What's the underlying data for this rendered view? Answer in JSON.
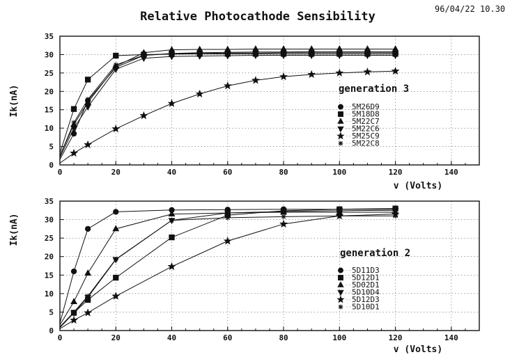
{
  "figure": {
    "title": "Relative Photocathode Sensibility",
    "stamp": "96/04/22  10.30"
  },
  "chart_data": [
    {
      "type": "line",
      "ylabel": "Ik(nA)",
      "xlabel": "v (Volts)",
      "annotation": "generation 3",
      "xlim": [
        0,
        150
      ],
      "ylim": [
        0,
        35
      ],
      "xticks": [
        0,
        20,
        40,
        60,
        80,
        100,
        120,
        140
      ],
      "yticks": [
        0,
        5,
        10,
        15,
        20,
        25,
        30,
        35
      ],
      "grid": true,
      "legend_position": "right",
      "series": [
        {
          "name": "5M26D9",
          "marker": "circle",
          "x": [
            0,
            5,
            10,
            20,
            30,
            40,
            50,
            60,
            70,
            80,
            90,
            100,
            110,
            120
          ],
          "y": [
            1.5,
            8.5,
            17.5,
            26.5,
            29.8,
            30.2,
            30.3,
            30.4,
            30.4,
            30.5,
            30.5,
            30.5,
            30.5,
            30.5
          ]
        },
        {
          "name": "5M18D8",
          "marker": "square",
          "x": [
            0,
            5,
            10,
            20,
            30,
            40,
            50,
            60,
            70,
            80,
            90,
            100,
            110,
            120
          ],
          "y": [
            3.2,
            15.2,
            23.2,
            29.7,
            30.0,
            30.1,
            30.2,
            30.2,
            30.2,
            30.2,
            30.2,
            30.2,
            30.2,
            30.2
          ]
        },
        {
          "name": "5M22C7",
          "marker": "triangle-up",
          "x": [
            0,
            5,
            10,
            20,
            30,
            40,
            50,
            60,
            70,
            80,
            90,
            100,
            110,
            120
          ],
          "y": [
            2.5,
            11.0,
            17.0,
            26.8,
            30.5,
            31.3,
            31.4,
            31.4,
            31.5,
            31.5,
            31.5,
            31.5,
            31.5,
            31.5
          ]
        },
        {
          "name": "5M22C6",
          "marker": "triangle-down",
          "x": [
            0,
            5,
            10,
            20,
            30,
            40,
            50,
            60,
            70,
            80,
            90,
            100,
            110,
            120
          ],
          "y": [
            2.0,
            10.0,
            15.8,
            26.0,
            29.0,
            29.5,
            29.6,
            29.7,
            29.8,
            29.8,
            29.8,
            29.8,
            29.8,
            29.8
          ]
        },
        {
          "name": "5M25C9",
          "marker": "star",
          "x": [
            0,
            5,
            10,
            20,
            30,
            40,
            50,
            60,
            70,
            80,
            90,
            100,
            110,
            120
          ],
          "y": [
            0.5,
            3.2,
            5.5,
            9.8,
            13.4,
            16.7,
            19.3,
            21.5,
            23.0,
            24.0,
            24.6,
            25.0,
            25.3,
            25.5
          ]
        },
        {
          "name": "5M22C8",
          "marker": "asterisk",
          "x": [
            0,
            5,
            10,
            20,
            30,
            40,
            50,
            60,
            70,
            80,
            90,
            100,
            110,
            120
          ],
          "y": [
            2.5,
            11.5,
            17.8,
            27.2,
            29.8,
            30.3,
            30.5,
            30.6,
            30.7,
            30.7,
            30.8,
            30.8,
            30.8,
            30.8
          ]
        }
      ]
    },
    {
      "type": "line",
      "ylabel": "Ik(nA)",
      "xlabel": "v (Volts)",
      "annotation": "generation 2",
      "xlim": [
        0,
        150
      ],
      "ylim": [
        0,
        35
      ],
      "xticks": [
        0,
        20,
        40,
        60,
        80,
        100,
        120,
        140
      ],
      "yticks": [
        0,
        5,
        10,
        15,
        20,
        25,
        30,
        35
      ],
      "grid": true,
      "legend_position": "right",
      "series": [
        {
          "name": "5D11D3",
          "marker": "circle",
          "x": [
            0,
            5,
            10,
            20,
            40,
            60,
            80,
            100,
            120
          ],
          "y": [
            2.0,
            16.0,
            27.5,
            32.1,
            32.6,
            32.7,
            32.8,
            32.8,
            32.8
          ]
        },
        {
          "name": "5D12D1",
          "marker": "square",
          "x": [
            0,
            5,
            10,
            20,
            40,
            60,
            80,
            100,
            120
          ],
          "y": [
            0.8,
            4.8,
            8.3,
            14.3,
            25.2,
            31.2,
            32.4,
            32.8,
            33.0
          ]
        },
        {
          "name": "5D02D1",
          "marker": "triangle-up",
          "x": [
            0,
            5,
            10,
            20,
            40,
            60,
            80,
            100,
            120
          ],
          "y": [
            1.5,
            7.8,
            15.5,
            27.5,
            31.5,
            31.8,
            32.0,
            32.0,
            32.0
          ]
        },
        {
          "name": "5D10D4",
          "marker": "triangle-down",
          "x": [
            0,
            5,
            10,
            20,
            40,
            60,
            80,
            100,
            120
          ],
          "y": [
            1.0,
            4.8,
            9.0,
            19.2,
            29.8,
            31.8,
            32.2,
            32.4,
            32.5
          ]
        },
        {
          "name": "5D12D3",
          "marker": "star",
          "x": [
            0,
            5,
            10,
            20,
            40,
            60,
            80,
            100,
            120
          ],
          "y": [
            0.5,
            2.8,
            4.8,
            9.3,
            17.3,
            24.2,
            28.8,
            31.0,
            31.5
          ]
        },
        {
          "name": "5D10D1",
          "marker": "asterisk",
          "x": [
            0,
            5,
            10,
            20,
            40,
            60,
            80,
            100,
            120
          ],
          "y": [
            1.0,
            5.0,
            9.3,
            19.3,
            29.8,
            30.5,
            30.8,
            31.0,
            31.0
          ]
        }
      ]
    }
  ]
}
